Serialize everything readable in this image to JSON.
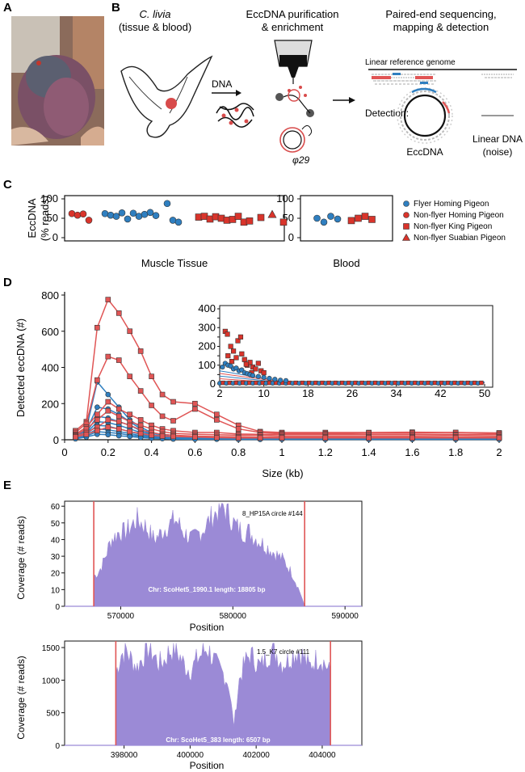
{
  "panels": {
    "a": "A",
    "b": "B",
    "c": "C",
    "d": "D",
    "e": "E"
  },
  "panel_b": {
    "step1_title": "C. livia",
    "step1_sub": "(tissue & blood)",
    "dna_label": "DNA",
    "step2_title": "EccDNA purification",
    "step2_sub": "& enrichment",
    "phi_label": "φ29",
    "step3_title": "Paired-end sequencing,",
    "step3_sub": "mapping & detection",
    "ref_label": "Linear reference genome",
    "detection_label": "Detection:",
    "eccdna_label": "EccDNA",
    "linear_label": "Linear DNA",
    "noise_label": "(noise)"
  },
  "colors": {
    "blue": "#2f7fc0",
    "red": "#d9342b",
    "purple": "#9b8ad6",
    "red_line": "#e05555"
  },
  "chart_data": [
    {
      "type": "scatter",
      "id": "panel_c",
      "ylabel_1": "EccDNA",
      "ylabel_2": "(% reads)",
      "ylim": [
        0,
        100
      ],
      "yticks": [
        "0",
        "50",
        "100"
      ],
      "groups": [
        "Muscle Tissue",
        "Blood"
      ],
      "legend": [
        {
          "name": "Flyer Homing Pigeon",
          "marker": "circle",
          "color": "#2f7fc0"
        },
        {
          "name": "Non-flyer Homing Pigeon",
          "marker": "circle",
          "color": "#d9342b"
        },
        {
          "name": "Non-flyer King Pigeon",
          "marker": "square",
          "color": "#d9342b"
        },
        {
          "name": "Non-flyer Suabian Pigeon",
          "marker": "triangle",
          "color": "#d9342b"
        }
      ],
      "muscle": {
        "nonflyer_homing": [
          [
            1,
            62
          ],
          [
            2,
            58
          ],
          [
            3,
            61
          ],
          [
            4,
            45
          ]
        ],
        "flyer_homing": [
          [
            6,
            62
          ],
          [
            7,
            58
          ],
          [
            8,
            55
          ],
          [
            9,
            64
          ],
          [
            10,
            48
          ],
          [
            11,
            63
          ],
          [
            12,
            55
          ],
          [
            13,
            60
          ],
          [
            14,
            65
          ],
          [
            15,
            57
          ],
          [
            17,
            88
          ],
          [
            18,
            45
          ],
          [
            19,
            40
          ]
        ],
        "king": [
          [
            22,
            53
          ],
          [
            23,
            55
          ],
          [
            24,
            48
          ],
          [
            25,
            54
          ],
          [
            26,
            50
          ],
          [
            27,
            45
          ],
          [
            28,
            47
          ],
          [
            29,
            55
          ],
          [
            30,
            40
          ],
          [
            31,
            43
          ],
          [
            33,
            52
          ],
          [
            37,
            40
          ]
        ],
        "suabian": [
          [
            35,
            60
          ]
        ]
      },
      "blood": {
        "flyer_homing": [
          [
            1,
            50
          ],
          [
            2,
            40
          ],
          [
            3,
            55
          ],
          [
            4,
            48
          ]
        ],
        "king": [
          [
            6,
            44
          ],
          [
            7,
            50
          ],
          [
            8,
            55
          ],
          [
            9,
            47
          ]
        ]
      }
    },
    {
      "type": "line",
      "id": "panel_d",
      "ylabel": "Detected eccDNA (#)",
      "xlabel": "Size (kb)",
      "xlim": [
        0,
        2
      ],
      "ylim": [
        0,
        800
      ],
      "xticks": [
        "0",
        "0.2",
        "0.4",
        "0.6",
        "0.8",
        "1",
        "1.2",
        "1.4",
        "1.6",
        "1.8",
        "2"
      ],
      "yticks": [
        "0",
        "200",
        "400",
        "600",
        "800"
      ],
      "x": [
        0.05,
        0.1,
        0.15,
        0.2,
        0.25,
        0.3,
        0.35,
        0.4,
        0.45,
        0.5,
        0.6,
        0.7,
        0.8,
        0.9,
        1.0,
        1.2,
        1.4,
        1.6,
        1.8,
        2.0
      ],
      "series_red": [
        {
          "name": "king-1",
          "values": [
            50,
            100,
            620,
            775,
            700,
            600,
            490,
            350,
            250,
            210,
            200,
            140,
            80,
            45,
            40,
            40,
            40,
            42,
            40,
            38
          ]
        },
        {
          "name": "king-2",
          "values": [
            40,
            90,
            330,
            460,
            440,
            350,
            270,
            190,
            130,
            105,
            170,
            110,
            60,
            40,
            35,
            35,
            38,
            38,
            40,
            36
          ]
        },
        {
          "name": "king-3",
          "values": [
            30,
            70,
            140,
            210,
            170,
            140,
            110,
            80,
            60,
            50,
            40,
            40,
            32,
            30,
            30,
            30,
            30,
            30,
            30,
            30
          ]
        },
        {
          "name": "king-4",
          "values": [
            25,
            60,
            110,
            160,
            130,
            100,
            80,
            60,
            45,
            35,
            30,
            28,
            25,
            25,
            22,
            22,
            22,
            22,
            24,
            22
          ]
        },
        {
          "name": "king-5",
          "values": [
            20,
            40,
            70,
            110,
            100,
            80,
            55,
            40,
            30,
            25,
            20,
            18,
            16,
            15,
            15,
            15,
            15,
            15,
            15,
            15
          ]
        },
        {
          "name": "king-6",
          "values": [
            15,
            30,
            50,
            70,
            60,
            45,
            35,
            25,
            20,
            18,
            15,
            12,
            10,
            10,
            10,
            10,
            10,
            10,
            10,
            10
          ]
        }
      ],
      "series_blue": [
        {
          "name": "flyer-1",
          "values": [
            20,
            60,
            320,
            250,
            180,
            110,
            70,
            40,
            25,
            18,
            14,
            12,
            10,
            10,
            10,
            10,
            10,
            10,
            10,
            10
          ]
        },
        {
          "name": "flyer-2",
          "values": [
            18,
            50,
            180,
            170,
            140,
            100,
            60,
            30,
            20,
            15,
            12,
            10,
            8,
            8,
            8,
            8,
            8,
            8,
            8,
            8
          ]
        },
        {
          "name": "flyer-3",
          "values": [
            15,
            40,
            130,
            120,
            100,
            80,
            50,
            25,
            18,
            12,
            10,
            8,
            8,
            8,
            8,
            8,
            8,
            8,
            8,
            8
          ]
        },
        {
          "name": "flyer-4",
          "values": [
            12,
            35,
            100,
            95,
            80,
            60,
            40,
            22,
            15,
            10,
            8,
            8,
            6,
            6,
            6,
            6,
            6,
            6,
            6,
            6
          ]
        },
        {
          "name": "flyer-5",
          "values": [
            10,
            30,
            80,
            75,
            60,
            45,
            30,
            18,
            12,
            8,
            6,
            6,
            5,
            5,
            5,
            5,
            5,
            5,
            5,
            5
          ]
        },
        {
          "name": "flyer-6",
          "values": [
            8,
            25,
            60,
            55,
            45,
            35,
            22,
            14,
            10,
            6,
            5,
            5,
            4,
            4,
            4,
            4,
            4,
            4,
            4,
            4
          ]
        },
        {
          "name": "flyer-7",
          "values": [
            6,
            20,
            45,
            40,
            35,
            25,
            18,
            10,
            8,
            5,
            4,
            4,
            3,
            3,
            3,
            3,
            3,
            3,
            3,
            3
          ]
        },
        {
          "name": "flyer-8",
          "values": [
            5,
            15,
            30,
            28,
            22,
            18,
            12,
            8,
            6,
            4,
            3,
            3,
            2,
            2,
            2,
            2,
            2,
            2,
            2,
            2
          ]
        }
      ],
      "inset": {
        "xlim": [
          2,
          50
        ],
        "ylim": [
          0,
          400
        ],
        "xticks": [
          "2",
          "10",
          "18",
          "26",
          "34",
          "42",
          "50"
        ],
        "yticks": [
          "0",
          "50",
          "100",
          "150",
          "200",
          "250",
          "300",
          "350",
          "400"
        ],
        "red_points": [
          [
            3,
            280
          ],
          [
            3.4,
            265
          ],
          [
            4,
            200
          ],
          [
            4.5,
            175
          ],
          [
            5.3,
            230
          ],
          [
            5.8,
            250
          ],
          [
            6,
            160
          ],
          [
            6.5,
            130
          ],
          [
            7,
            100
          ],
          [
            7.5,
            115
          ],
          [
            8,
            90
          ],
          [
            8.5,
            80
          ],
          [
            9,
            110
          ],
          [
            9.5,
            70
          ],
          [
            10,
            60
          ],
          [
            3.5,
            150
          ],
          [
            4.2,
            120
          ],
          [
            5,
            140
          ],
          [
            6.8,
            105
          ],
          [
            7.8,
            60
          ]
        ],
        "blue_points": [
          [
            2.5,
            90
          ],
          [
            3,
            110
          ],
          [
            3.5,
            100
          ],
          [
            4,
            95
          ],
          [
            4.5,
            80
          ],
          [
            5,
            85
          ],
          [
            5.5,
            70
          ],
          [
            6,
            75
          ],
          [
            6.5,
            60
          ],
          [
            7,
            55
          ],
          [
            7.5,
            50
          ],
          [
            8,
            45
          ],
          [
            9,
            40
          ],
          [
            10,
            35
          ],
          [
            11,
            30
          ],
          [
            12,
            25
          ],
          [
            13,
            20
          ],
          [
            14,
            18
          ]
        ]
      }
    },
    {
      "type": "area",
      "id": "panel_e1",
      "title": "8_HP15A circle #144",
      "note": "Chr: ScoHet5_1990.1 length: 18805 bp",
      "ylabel": "Coverage (# reads)",
      "xlabel": "Position",
      "xlim": [
        565000,
        591500
      ],
      "ylim": [
        0,
        63
      ],
      "xticks": [
        "570000",
        "580000",
        "590000"
      ],
      "yticks": [
        "0",
        "10",
        "20",
        "30",
        "40",
        "50",
        "60"
      ],
      "start": 567600,
      "end": 586400,
      "profile": [
        18,
        20,
        25,
        32,
        40,
        42,
        45,
        44,
        46,
        49,
        52,
        50,
        48,
        44,
        40,
        42,
        45,
        48,
        50,
        52,
        48,
        44,
        42,
        40,
        43,
        45,
        48,
        52,
        55,
        58,
        60,
        56,
        52,
        48,
        46,
        44,
        45,
        42,
        40,
        38,
        36,
        34,
        32,
        30,
        28,
        24,
        20,
        14,
        8,
        0
      ]
    },
    {
      "type": "area",
      "id": "panel_e2",
      "title": "1.5_K7 circle #111",
      "note": "Chr: ScoHet5_383 length: 6507 bp",
      "ylabel": "Coverage (# reads)",
      "xlabel": "Position",
      "xlim": [
        396200,
        405200
      ],
      "ylim": [
        0,
        1600
      ],
      "xticks": [
        "398000",
        "400000",
        "402000",
        "404000"
      ],
      "yticks": [
        "0",
        "500",
        "1000",
        "1500"
      ],
      "start": 397750,
      "end": 404250,
      "profile": [
        1100,
        1400,
        1450,
        1300,
        1200,
        1350,
        1500,
        1400,
        1250,
        1300,
        1450,
        1480,
        1350,
        1200,
        1150,
        1300,
        1400,
        1500,
        1350,
        1200,
        1100,
        950,
        300,
        1000,
        1250,
        1400,
        1300,
        1200,
        1350,
        1450,
        1400,
        1250,
        1300,
        1400,
        1450,
        1350,
        1200,
        1300,
        1350,
        1250,
        1100
      ]
    }
  ]
}
